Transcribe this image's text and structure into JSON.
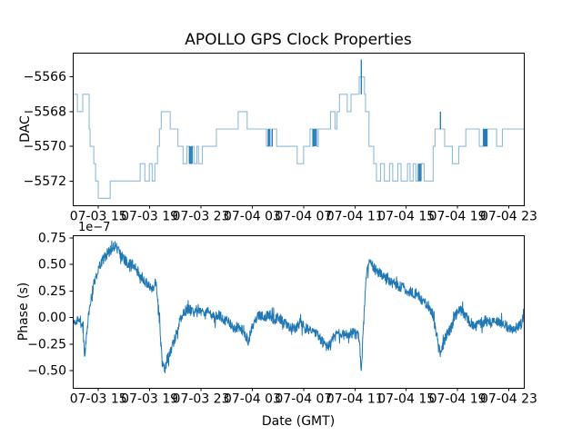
{
  "figure": {
    "title": "APOLLO GPS Clock Properties"
  },
  "chart_data": [
    {
      "type": "line",
      "name": "dac-vs-time",
      "ylabel": "DAC",
      "drawstyle": "steps-post",
      "line_color": "#1f77b4",
      "line_alpha": 0.5,
      "grid": false,
      "legend": "none",
      "x_unit": "hours since 2000-07-03 13:00 GMT (estimated axis start)",
      "xlim": [
        0,
        35.17
      ],
      "ylim": [
        -5573.4,
        -5564.6
      ],
      "ytick_values": [
        -5566,
        -5568,
        -5570,
        -5572
      ],
      "ytick_labels": [
        "−5566",
        "−5568",
        "−5570",
        "−5572"
      ],
      "xtick_values": [
        2,
        6,
        10,
        14,
        18,
        22,
        26,
        30,
        34
      ],
      "xtick_labels": [
        "07-03 15",
        "07-03 19",
        "07-03 23",
        "07-04 03",
        "07-04 07",
        "07-04 11",
        "07-04 15",
        "07-04 19",
        "07-04 23"
      ],
      "points": [
        [
          0,
          -5567
        ],
        [
          0.36,
          -5568
        ],
        [
          0.78,
          -5567
        ],
        [
          1.28,
          -5569
        ],
        [
          1.35,
          -5570
        ],
        [
          1.64,
          -5571
        ],
        [
          1.78,
          -5572
        ],
        [
          1.99,
          -5573
        ],
        [
          2.92,
          -5572
        ],
        [
          5.26,
          -5571
        ],
        [
          5.62,
          -5572
        ],
        [
          5.97,
          -5571
        ],
        [
          6.19,
          -5572
        ],
        [
          6.4,
          -5571
        ],
        [
          6.61,
          -5570
        ],
        [
          6.76,
          -5569
        ],
        [
          6.9,
          -5568
        ],
        [
          7.6,
          -5569
        ],
        [
          8.2,
          -5570
        ],
        [
          8.6,
          -5571
        ],
        [
          8.9,
          -5570
        ],
        [
          9.1,
          -5571
        ],
        [
          9.3,
          -5570
        ],
        [
          9.45,
          -5571
        ],
        [
          9.67,
          -5570
        ],
        [
          9.8,
          -5571
        ],
        [
          10.1,
          -5570
        ],
        [
          11.2,
          -5569
        ],
        [
          12.9,
          -5568
        ],
        [
          13.6,
          -5569
        ],
        [
          15.1,
          -5570
        ],
        [
          15.25,
          -5569
        ],
        [
          15.4,
          -5570
        ],
        [
          15.55,
          -5569
        ],
        [
          15.9,
          -5570
        ],
        [
          17.5,
          -5571
        ],
        [
          18.0,
          -5570
        ],
        [
          18.5,
          -5569
        ],
        [
          18.7,
          -5570
        ],
        [
          18.8,
          -5569
        ],
        [
          19.05,
          -5570
        ],
        [
          19.15,
          -5569
        ],
        [
          20.1,
          -5568
        ],
        [
          20.45,
          -5569
        ],
        [
          20.6,
          -5568
        ],
        [
          20.8,
          -5567
        ],
        [
          21.4,
          -5568
        ],
        [
          21.7,
          -5567
        ],
        [
          22.33,
          -5566
        ],
        [
          22.75,
          -5567
        ],
        [
          22.83,
          -5568
        ],
        [
          23.1,
          -5570
        ],
        [
          23.47,
          -5571
        ],
        [
          23.68,
          -5572
        ],
        [
          24.0,
          -5571
        ],
        [
          24.3,
          -5572
        ],
        [
          24.7,
          -5571
        ],
        [
          24.95,
          -5572
        ],
        [
          25.35,
          -5571
        ],
        [
          25.6,
          -5572
        ],
        [
          26.1,
          -5571
        ],
        [
          26.3,
          -5572
        ],
        [
          26.55,
          -5571
        ],
        [
          26.75,
          -5572
        ],
        [
          27.15,
          -5571
        ],
        [
          27.4,
          -5572
        ],
        [
          28.1,
          -5570
        ],
        [
          28.25,
          -5569
        ],
        [
          29.0,
          -5570
        ],
        [
          29.6,
          -5571
        ],
        [
          30.1,
          -5570
        ],
        [
          30.65,
          -5569
        ],
        [
          31.7,
          -5570
        ],
        [
          32.0,
          -5569
        ],
        [
          32.08,
          -5570
        ],
        [
          32.16,
          -5569
        ],
        [
          32.24,
          -5570
        ],
        [
          32.32,
          -5569
        ],
        [
          33.05,
          -5570
        ],
        [
          33.5,
          -5569
        ],
        [
          35.17,
          -5569
        ]
      ],
      "dark_steps": [
        [
          9.1,
          -5571,
          -5570
        ],
        [
          9.2,
          -5571,
          -5570
        ],
        [
          9.3,
          -5571,
          -5570
        ],
        [
          15.25,
          -5570,
          -5569
        ],
        [
          15.33,
          -5570,
          -5569
        ],
        [
          15.55,
          -5570,
          -5569
        ],
        [
          18.75,
          -5570,
          -5569
        ],
        [
          18.85,
          -5570,
          -5569
        ],
        [
          18.95,
          -5570,
          -5569
        ],
        [
          22.5,
          -5567,
          -5565
        ],
        [
          26.95,
          -5572,
          -5571
        ],
        [
          27.05,
          -5572,
          -5571
        ],
        [
          27.15,
          -5572,
          -5571
        ],
        [
          28.67,
          -5569,
          -5568
        ],
        [
          32.04,
          -5570,
          -5569
        ],
        [
          32.12,
          -5570,
          -5569
        ],
        [
          32.2,
          -5570,
          -5569
        ],
        [
          32.28,
          -5570,
          -5569
        ]
      ]
    },
    {
      "type": "line",
      "name": "phase-vs-time",
      "ylabel": "Phase (s)",
      "xlabel": "Date (GMT)",
      "offset_text": "1e−7",
      "y_scale_factor": 1e-07,
      "line_color": "#1f77b4",
      "grid": false,
      "legend": "none",
      "x_unit": "hours since 2000-07-03 13:00 GMT (estimated axis start)",
      "xlim": [
        0,
        35.17
      ],
      "ylim": [
        -0.662,
        0.776
      ],
      "ytick_values": [
        0.75,
        0.5,
        0.25,
        0.0,
        -0.25,
        -0.5
      ],
      "ytick_labels": [
        "0.75",
        "0.50",
        "0.25",
        "0.00",
        "−0.25",
        "−0.50"
      ],
      "xtick_values": [
        2,
        6,
        10,
        14,
        18,
        22,
        26,
        30,
        34
      ],
      "xtick_labels": [
        "07-03 15",
        "07-03 19",
        "07-03 23",
        "07-04 03",
        "07-04 07",
        "07-04 11",
        "07-04 15",
        "07-04 19",
        "07-04 23"
      ],
      "keypoints": [
        [
          0,
          -0.02
        ],
        [
          0.3,
          -0.04
        ],
        [
          0.6,
          -0.03
        ],
        [
          0.8,
          -0.1
        ],
        [
          0.92,
          -0.37
        ],
        [
          1.05,
          -0.2
        ],
        [
          1.3,
          0.1
        ],
        [
          1.7,
          0.35
        ],
        [
          2.2,
          0.52
        ],
        [
          2.8,
          0.62
        ],
        [
          3.3,
          0.68
        ],
        [
          3.7,
          0.6
        ],
        [
          4.2,
          0.52
        ],
        [
          4.7,
          0.5
        ],
        [
          5.2,
          0.42
        ],
        [
          5.6,
          0.35
        ],
        [
          6.0,
          0.3
        ],
        [
          6.3,
          0.28
        ],
        [
          6.5,
          0.35
        ],
        [
          6.6,
          0.2
        ],
        [
          6.75,
          0.0
        ],
        [
          6.9,
          -0.3
        ],
        [
          7.0,
          -0.45
        ],
        [
          7.15,
          -0.49
        ],
        [
          7.4,
          -0.38
        ],
        [
          7.7,
          -0.3
        ],
        [
          8.0,
          -0.18
        ],
        [
          8.3,
          -0.05
        ],
        [
          8.6,
          0.05
        ],
        [
          9.0,
          0.08
        ],
        [
          9.4,
          0.05
        ],
        [
          9.8,
          0.08
        ],
        [
          10.2,
          0.03
        ],
        [
          10.6,
          0.05
        ],
        [
          11.0,
          0.0
        ],
        [
          11.4,
          0.02
        ],
        [
          11.8,
          -0.02
        ],
        [
          12.2,
          -0.05
        ],
        [
          12.6,
          -0.1
        ],
        [
          13.0,
          -0.08
        ],
        [
          13.4,
          -0.15
        ],
        [
          13.7,
          -0.22
        ],
        [
          13.9,
          -0.12
        ],
        [
          14.2,
          -0.02
        ],
        [
          14.5,
          0.02
        ],
        [
          14.9,
          0.0
        ],
        [
          15.3,
          0.03
        ],
        [
          15.7,
          -0.02
        ],
        [
          16.1,
          0.0
        ],
        [
          16.5,
          -0.05
        ],
        [
          16.9,
          -0.08
        ],
        [
          17.3,
          -0.1
        ],
        [
          17.7,
          -0.05
        ],
        [
          18.1,
          -0.1
        ],
        [
          18.5,
          -0.12
        ],
        [
          18.9,
          -0.15
        ],
        [
          19.3,
          -0.2
        ],
        [
          19.6,
          -0.25
        ],
        [
          19.9,
          -0.28
        ],
        [
          20.2,
          -0.2
        ],
        [
          20.5,
          -0.17
        ],
        [
          20.8,
          -0.15
        ],
        [
          21.2,
          -0.16
        ],
        [
          21.6,
          -0.14
        ],
        [
          22.0,
          -0.15
        ],
        [
          22.3,
          -0.18
        ],
        [
          22.42,
          -0.35
        ],
        [
          22.5,
          -0.55
        ],
        [
          22.6,
          -0.25
        ],
        [
          22.75,
          0.1
        ],
        [
          22.9,
          0.4
        ],
        [
          23.1,
          0.52
        ],
        [
          23.4,
          0.48
        ],
        [
          23.8,
          0.42
        ],
        [
          24.2,
          0.4
        ],
        [
          24.6,
          0.35
        ],
        [
          25.0,
          0.32
        ],
        [
          25.4,
          0.3
        ],
        [
          25.8,
          0.28
        ],
        [
          26.2,
          0.25
        ],
        [
          26.6,
          0.22
        ],
        [
          27.0,
          0.2
        ],
        [
          27.4,
          0.15
        ],
        [
          27.8,
          0.1
        ],
        [
          28.1,
          0.02
        ],
        [
          28.35,
          -0.15
        ],
        [
          28.55,
          -0.3
        ],
        [
          28.7,
          -0.35
        ],
        [
          28.9,
          -0.25
        ],
        [
          29.2,
          -0.15
        ],
        [
          29.5,
          -0.1
        ],
        [
          29.8,
          0.0
        ],
        [
          30.1,
          0.08
        ],
        [
          30.4,
          0.05
        ],
        [
          30.7,
          0.0
        ],
        [
          31.0,
          -0.05
        ],
        [
          31.4,
          -0.08
        ],
        [
          31.8,
          -0.05
        ],
        [
          32.2,
          -0.03
        ],
        [
          32.6,
          -0.05
        ],
        [
          33.0,
          -0.02
        ],
        [
          33.4,
          -0.05
        ],
        [
          33.8,
          -0.08
        ],
        [
          34.2,
          -0.1
        ],
        [
          34.6,
          -0.1
        ],
        [
          35.0,
          -0.06
        ],
        [
          35.17,
          0.05
        ]
      ],
      "noise_amplitude": 0.05,
      "n_points": 1600
    }
  ]
}
